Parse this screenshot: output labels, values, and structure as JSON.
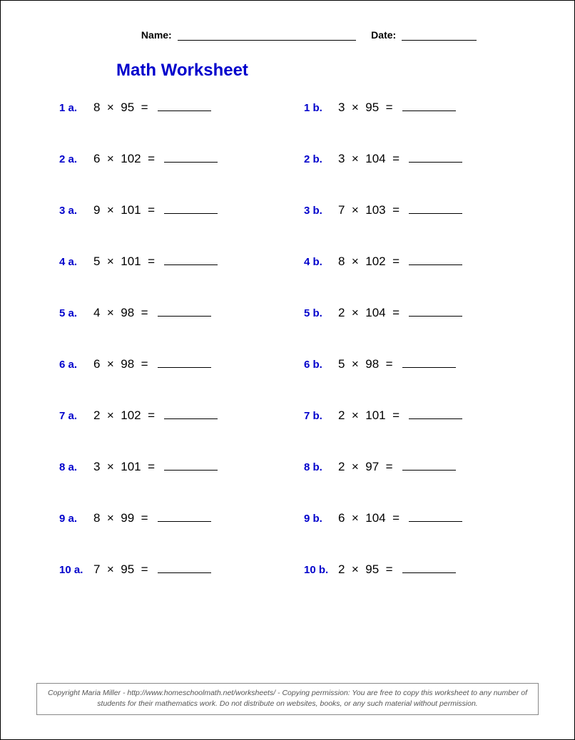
{
  "header": {
    "name_label": "Name:",
    "date_label": "Date:"
  },
  "title": "Math Worksheet",
  "colors": {
    "accent": "#0000cc",
    "text": "#000000",
    "footer_border": "#888888",
    "footer_text": "#555555",
    "background": "#ffffff"
  },
  "typography": {
    "title_fontsize": 24,
    "label_fontsize": 15,
    "problem_fontsize": 17,
    "footer_fontsize": 10.5
  },
  "layout": {
    "columns": 2,
    "rows": 10,
    "row_gap": 52,
    "answer_blank_width": 75
  },
  "problems": [
    {
      "label": "1 a.",
      "a": 8,
      "b": 95
    },
    {
      "label": "1 b.",
      "a": 3,
      "b": 95
    },
    {
      "label": "2 a.",
      "a": 6,
      "b": 102
    },
    {
      "label": "2 b.",
      "a": 3,
      "b": 104
    },
    {
      "label": "3 a.",
      "a": 9,
      "b": 101
    },
    {
      "label": "3 b.",
      "a": 7,
      "b": 103
    },
    {
      "label": "4 a.",
      "a": 5,
      "b": 101
    },
    {
      "label": "4 b.",
      "a": 8,
      "b": 102
    },
    {
      "label": "5 a.",
      "a": 4,
      "b": 98
    },
    {
      "label": "5 b.",
      "a": 2,
      "b": 104
    },
    {
      "label": "6 a.",
      "a": 6,
      "b": 98
    },
    {
      "label": "6 b.",
      "a": 5,
      "b": 98
    },
    {
      "label": "7 a.",
      "a": 2,
      "b": 102
    },
    {
      "label": "7 b.",
      "a": 2,
      "b": 101
    },
    {
      "label": "8 a.",
      "a": 3,
      "b": 101
    },
    {
      "label": "8 b.",
      "a": 2,
      "b": 97
    },
    {
      "label": "9 a.",
      "a": 8,
      "b": 99
    },
    {
      "label": "9 b.",
      "a": 6,
      "b": 104
    },
    {
      "label": "10 a.",
      "a": 7,
      "b": 95
    },
    {
      "label": "10 b.",
      "a": 2,
      "b": 95
    }
  ],
  "operator": "×",
  "equals": "=",
  "footer": "Copyright Maria Miller - http://www.homeschoolmath.net/worksheets/ - Copying permission: You are free to copy this worksheet to any number of students for their mathematics work. Do not distribute on websites, books, or any such material without permission."
}
